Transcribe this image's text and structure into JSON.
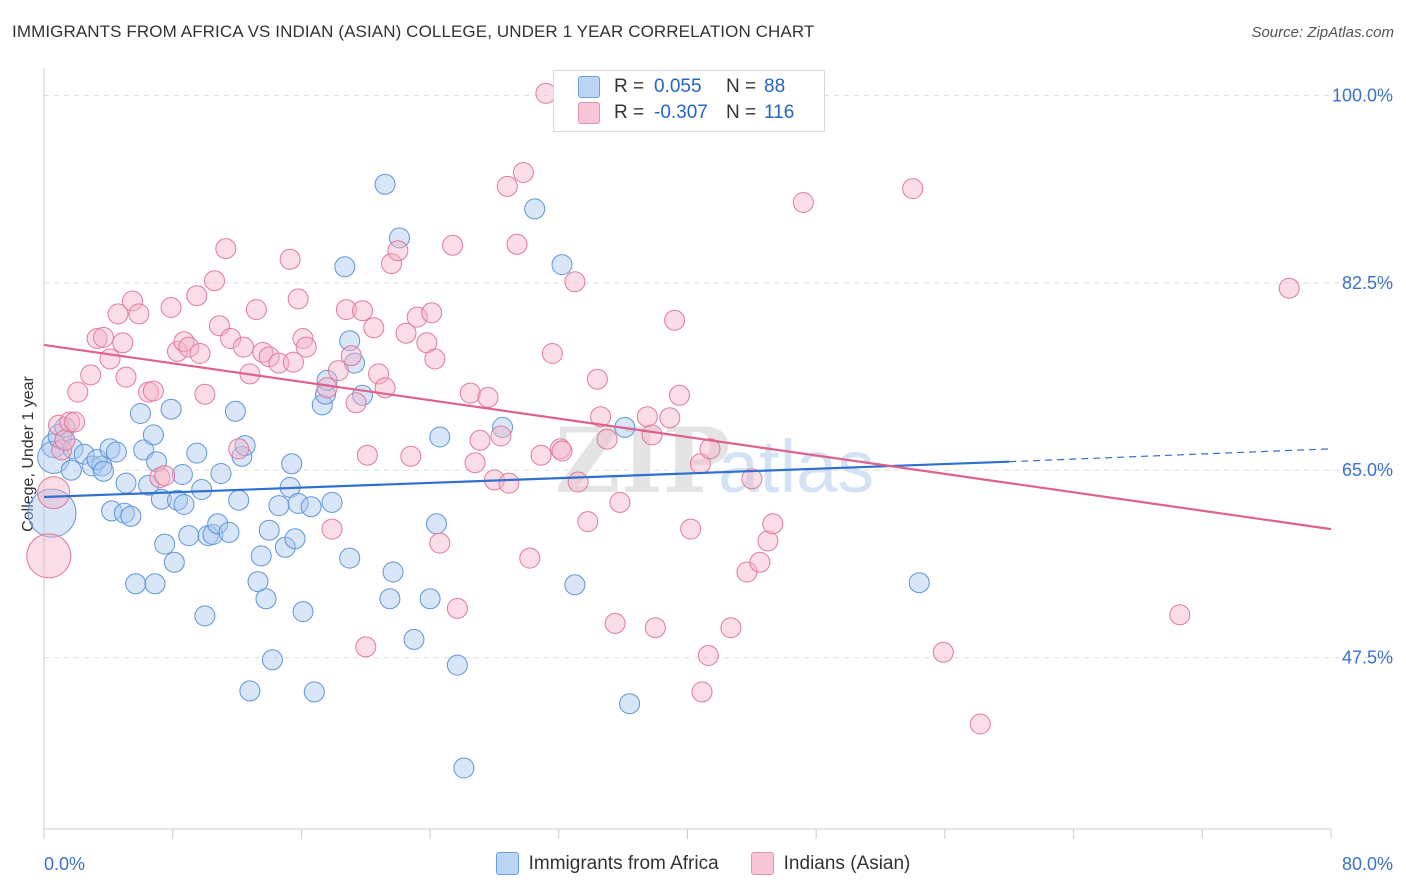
{
  "title": "IMMIGRANTS FROM AFRICA VS INDIAN (ASIAN) COLLEGE, UNDER 1 YEAR CORRELATION CHART",
  "source": "Source: ZipAtlas.com",
  "watermark": {
    "zip": "ZIP",
    "atlas": "atlas"
  },
  "legend_top": [
    {
      "r_label": "R =",
      "r_value": "0.055",
      "n_label": "N =",
      "n_value": "88"
    },
    {
      "r_label": "R =",
      "r_value": "-0.307",
      "n_label": "N =",
      "n_value": "116"
    }
  ],
  "legend_bottom": [
    {
      "label": "Immigrants from Africa"
    },
    {
      "label": "Indians (Asian)"
    }
  ],
  "colors": {
    "blue_fill": "#a8c8f0",
    "blue_stroke": "#5f95d8",
    "blue_line": "#2f6fd0",
    "pink_fill": "#f4b3c8",
    "pink_stroke": "#e07a9d",
    "pink_line": "#e0608e",
    "tick_label": "#3a72c8",
    "grid": "#dddddd"
  },
  "chart_data": {
    "type": "scatter",
    "title": "IMMIGRANTS FROM AFRICA VS INDIAN (ASIAN) COLLEGE, UNDER 1 YEAR CORRELATION CHART",
    "xlabel": "",
    "ylabel": "College, Under 1 year",
    "xlim": [
      0,
      80
    ],
    "ylim": [
      31.5,
      102
    ],
    "x_tick_labels": [
      "0.0%",
      "80.0%"
    ],
    "y_tick_labels": [
      "100.0%",
      "82.5%",
      "65.0%",
      "47.5%"
    ],
    "y_ticks": [
      100,
      82.5,
      65,
      47.5
    ],
    "grid": true,
    "series": [
      {
        "name": "Immigrants from Africa",
        "color": "blue",
        "r": 0.055,
        "n": 88,
        "trend": {
          "x0": 0,
          "y0": 62.5,
          "x1": 60,
          "y1": 65.8,
          "dash_x1": 80,
          "dash_y1": 67
        },
        "points": [
          [
            0.6,
            67.3,
            12
          ],
          [
            0.6,
            66.2,
            16
          ],
          [
            0.5,
            61.0,
            24
          ],
          [
            1.0,
            68.2,
            12
          ],
          [
            1.3,
            69.0,
            10
          ],
          [
            1.7,
            65.0,
            10
          ],
          [
            1.8,
            67.0,
            10
          ],
          [
            2.5,
            66.5,
            10
          ],
          [
            3.0,
            65.4,
            10
          ],
          [
            3.6,
            65.4,
            10
          ],
          [
            3.3,
            66.0,
            10
          ],
          [
            3.7,
            64.9,
            10
          ],
          [
            4.1,
            67.0,
            10
          ],
          [
            4.5,
            66.7,
            10
          ],
          [
            4.2,
            61.2,
            10
          ],
          [
            5.0,
            61.0,
            10
          ],
          [
            5.4,
            60.7,
            10
          ],
          [
            5.1,
            63.8,
            10
          ],
          [
            5.7,
            54.4,
            10
          ],
          [
            6.0,
            70.3,
            10
          ],
          [
            6.2,
            66.9,
            10
          ],
          [
            6.8,
            68.3,
            10
          ],
          [
            6.5,
            63.6,
            10
          ],
          [
            6.9,
            54.4,
            10
          ],
          [
            7.0,
            65.8,
            10
          ],
          [
            7.3,
            62.3,
            10
          ],
          [
            7.5,
            58.1,
            10
          ],
          [
            7.9,
            70.7,
            10
          ],
          [
            8.1,
            56.4,
            10
          ],
          [
            8.3,
            62.2,
            10
          ],
          [
            8.6,
            64.6,
            10
          ],
          [
            8.7,
            61.8,
            10
          ],
          [
            9.0,
            58.9,
            10
          ],
          [
            9.5,
            66.6,
            10
          ],
          [
            9.8,
            63.2,
            10
          ],
          [
            10.0,
            51.4,
            10
          ],
          [
            10.2,
            58.9,
            10
          ],
          [
            10.5,
            59.0,
            10
          ],
          [
            10.8,
            60.0,
            10
          ],
          [
            11.0,
            64.7,
            10
          ],
          [
            11.5,
            59.2,
            10
          ],
          [
            11.9,
            70.5,
            10
          ],
          [
            12.1,
            62.2,
            10
          ],
          [
            12.3,
            66.3,
            10
          ],
          [
            12.5,
            67.3,
            10
          ],
          [
            12.8,
            44.4,
            10
          ],
          [
            13.3,
            54.6,
            10
          ],
          [
            13.5,
            57.0,
            10
          ],
          [
            13.8,
            53.0,
            10
          ],
          [
            14.0,
            59.4,
            10
          ],
          [
            14.2,
            47.3,
            10
          ],
          [
            14.6,
            61.7,
            10
          ],
          [
            15.0,
            57.8,
            10
          ],
          [
            15.3,
            63.4,
            10
          ],
          [
            15.4,
            65.6,
            10
          ],
          [
            15.6,
            58.6,
            10
          ],
          [
            15.8,
            61.9,
            10
          ],
          [
            16.1,
            51.8,
            10
          ],
          [
            16.6,
            61.6,
            10
          ],
          [
            16.8,
            44.3,
            10
          ],
          [
            17.3,
            71.1,
            10
          ],
          [
            17.5,
            72.1,
            10
          ],
          [
            17.6,
            73.4,
            10
          ],
          [
            17.9,
            62.0,
            10
          ],
          [
            19.0,
            77.1,
            10
          ],
          [
            19.3,
            75.0,
            10
          ],
          [
            19.0,
            56.8,
            10
          ],
          [
            18.7,
            84.0,
            10
          ],
          [
            19.8,
            72.0,
            10
          ],
          [
            21.2,
            91.7,
            10
          ],
          [
            21.5,
            53.0,
            10
          ],
          [
            21.7,
            55.5,
            10
          ],
          [
            22.1,
            86.7,
            10
          ],
          [
            23.0,
            49.2,
            10
          ],
          [
            24.0,
            53.0,
            10
          ],
          [
            24.4,
            60.0,
            10
          ],
          [
            24.6,
            68.1,
            10
          ],
          [
            25.7,
            46.8,
            10
          ],
          [
            26.1,
            37.2,
            10
          ],
          [
            28.5,
            69.0,
            10
          ],
          [
            30.5,
            89.4,
            10
          ],
          [
            32.2,
            84.2,
            10
          ],
          [
            33.0,
            54.3,
            10
          ],
          [
            36.1,
            69.0,
            10
          ],
          [
            36.4,
            43.2,
            10
          ],
          [
            54.4,
            54.5,
            10
          ]
        ]
      },
      {
        "name": "Indians (Asian)",
        "color": "pink",
        "r": -0.307,
        "n": 116,
        "trend": {
          "x0": 0,
          "y0": 76.7,
          "x1": 80,
          "y1": 59.5
        },
        "points": [
          [
            0.3,
            57.0,
            22
          ],
          [
            0.6,
            62.9,
            16
          ],
          [
            0.9,
            69.2,
            10
          ],
          [
            1.1,
            66.9,
            10
          ],
          [
            1.3,
            67.8,
            10
          ],
          [
            1.6,
            69.5,
            10
          ],
          [
            1.9,
            69.5,
            10
          ],
          [
            2.1,
            72.3,
            10
          ],
          [
            2.9,
            73.9,
            10
          ],
          [
            3.3,
            77.3,
            10
          ],
          [
            3.7,
            77.4,
            10
          ],
          [
            4.1,
            75.4,
            10
          ],
          [
            4.6,
            79.6,
            10
          ],
          [
            4.9,
            76.9,
            10
          ],
          [
            5.1,
            73.7,
            10
          ],
          [
            5.5,
            80.8,
            10
          ],
          [
            5.9,
            79.6,
            10
          ],
          [
            6.5,
            72.3,
            10
          ],
          [
            6.8,
            72.4,
            10
          ],
          [
            7.2,
            64.3,
            10
          ],
          [
            7.5,
            64.5,
            10
          ],
          [
            7.9,
            80.2,
            10
          ],
          [
            8.3,
            76.1,
            10
          ],
          [
            8.7,
            77.0,
            10
          ],
          [
            9.0,
            76.5,
            10
          ],
          [
            9.5,
            81.3,
            10
          ],
          [
            9.7,
            75.9,
            10
          ],
          [
            10.0,
            72.1,
            10
          ],
          [
            10.6,
            82.7,
            10
          ],
          [
            10.9,
            78.5,
            10
          ],
          [
            11.3,
            85.7,
            10
          ],
          [
            11.6,
            77.3,
            10
          ],
          [
            12.1,
            67.0,
            10
          ],
          [
            12.4,
            76.5,
            10
          ],
          [
            12.8,
            74.0,
            10
          ],
          [
            13.2,
            80.0,
            10
          ],
          [
            13.6,
            76.0,
            10
          ],
          [
            14.0,
            75.6,
            10
          ],
          [
            14.6,
            75.0,
            10
          ],
          [
            15.3,
            84.7,
            10
          ],
          [
            15.5,
            75.1,
            10
          ],
          [
            15.8,
            81.0,
            10
          ],
          [
            16.1,
            77.3,
            10
          ],
          [
            16.3,
            76.5,
            10
          ],
          [
            17.6,
            72.7,
            10
          ],
          [
            17.9,
            59.5,
            10
          ],
          [
            18.3,
            74.3,
            10
          ],
          [
            18.8,
            80.0,
            10
          ],
          [
            19.1,
            75.7,
            10
          ],
          [
            19.4,
            71.3,
            10
          ],
          [
            19.8,
            79.9,
            10
          ],
          [
            20.1,
            66.4,
            10
          ],
          [
            20.5,
            78.3,
            10
          ],
          [
            20.8,
            74.0,
            10
          ],
          [
            20.0,
            48.5,
            10
          ],
          [
            21.2,
            72.7,
            10
          ],
          [
            21.6,
            84.3,
            10
          ],
          [
            22.0,
            85.5,
            10
          ],
          [
            22.5,
            77.8,
            10
          ],
          [
            22.8,
            66.3,
            10
          ],
          [
            23.2,
            79.3,
            10
          ],
          [
            23.8,
            76.9,
            10
          ],
          [
            24.1,
            79.7,
            10
          ],
          [
            24.3,
            75.4,
            10
          ],
          [
            24.6,
            58.2,
            10
          ],
          [
            25.4,
            86.0,
            10
          ],
          [
            25.7,
            52.1,
            10
          ],
          [
            26.5,
            72.2,
            10
          ],
          [
            26.8,
            65.7,
            10
          ],
          [
            27.1,
            67.8,
            10
          ],
          [
            27.6,
            71.8,
            10
          ],
          [
            28.0,
            64.1,
            10
          ],
          [
            28.4,
            68.2,
            10
          ],
          [
            28.8,
            91.5,
            10
          ],
          [
            28.9,
            63.8,
            10
          ],
          [
            29.4,
            86.1,
            10
          ],
          [
            29.8,
            92.8,
            10
          ],
          [
            30.2,
            56.8,
            10
          ],
          [
            30.9,
            66.4,
            10
          ],
          [
            31.2,
            100.2,
            10
          ],
          [
            31.6,
            75.9,
            10
          ],
          [
            32.1,
            67.0,
            10
          ],
          [
            32.2,
            66.8,
            10
          ],
          [
            33.0,
            82.6,
            10
          ],
          [
            33.2,
            63.9,
            10
          ],
          [
            33.8,
            60.2,
            10
          ],
          [
            34.4,
            73.5,
            10
          ],
          [
            34.6,
            70.0,
            10
          ],
          [
            35.0,
            67.9,
            10
          ],
          [
            35.5,
            50.7,
            10
          ],
          [
            35.8,
            62.0,
            10
          ],
          [
            37.5,
            70.0,
            10
          ],
          [
            37.8,
            68.3,
            10
          ],
          [
            38.0,
            50.3,
            10
          ],
          [
            38.9,
            69.9,
            10
          ],
          [
            39.2,
            79.0,
            10
          ],
          [
            39.5,
            72.0,
            10
          ],
          [
            40.2,
            59.5,
            10
          ],
          [
            40.8,
            65.6,
            10
          ],
          [
            40.9,
            44.3,
            10
          ],
          [
            41.3,
            47.7,
            10
          ],
          [
            41.4,
            67.0,
            10
          ],
          [
            42.7,
            50.3,
            10
          ],
          [
            43.7,
            55.5,
            10
          ],
          [
            44.0,
            64.2,
            10
          ],
          [
            44.5,
            56.4,
            10
          ],
          [
            45.0,
            58.4,
            10
          ],
          [
            45.3,
            60.0,
            10
          ],
          [
            47.2,
            90.0,
            10
          ],
          [
            54.0,
            91.3,
            10
          ],
          [
            55.9,
            48.0,
            10
          ],
          [
            58.2,
            41.3,
            10
          ],
          [
            70.6,
            51.5,
            10
          ],
          [
            77.4,
            82.0,
            10
          ]
        ]
      }
    ]
  }
}
